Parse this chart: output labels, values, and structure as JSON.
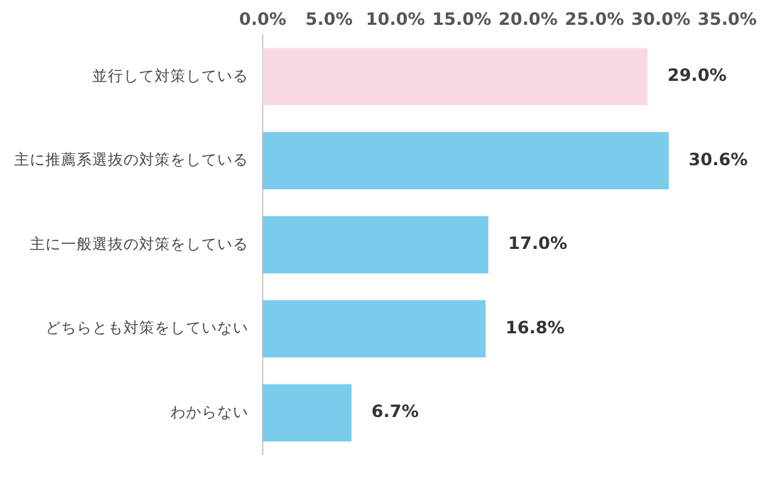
{
  "chart_data": {
    "type": "bar",
    "orientation": "horizontal",
    "categories": [
      "並行して対策している",
      "主に推薦系選抜の対策をしている",
      "主に一般選抜の対策をしている",
      "どちらとも対策をしていない",
      "わからない"
    ],
    "values": [
      29.0,
      30.6,
      17.0,
      16.8,
      6.7
    ],
    "colors": [
      "#f9d8e6",
      "#7acbec",
      "#7acbec",
      "#7acbec",
      "#7acbec"
    ],
    "value_labels": [
      "29.0%",
      "30.6%",
      "17.0%",
      "16.8%",
      "6.7%"
    ],
    "xlim": [
      0,
      35
    ],
    "xticks": [
      {
        "value": 0,
        "label": "0.0%"
      },
      {
        "value": 5,
        "label": "5.0%"
      },
      {
        "value": 10,
        "label": "10.0%"
      },
      {
        "value": 15,
        "label": "15.0%"
      },
      {
        "value": 20,
        "label": "20.0%"
      },
      {
        "value": 25,
        "label": "25.0%"
      },
      {
        "value": 30,
        "label": "30.0%"
      },
      {
        "value": 35,
        "label": "35.0%"
      }
    ],
    "grid": false,
    "legend": false
  }
}
